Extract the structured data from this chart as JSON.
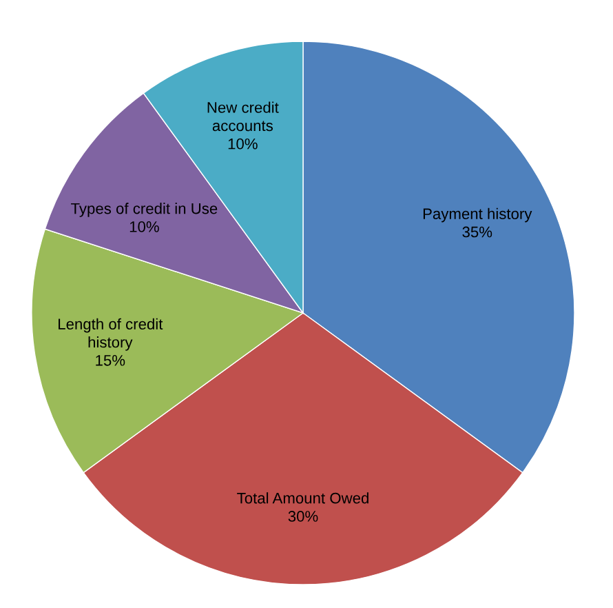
{
  "chart_data": {
    "type": "pie",
    "categories": [
      "Payment history",
      "Total Amount Owed",
      "Length of credit\nhistory",
      "Types of credit in Use",
      "New credit\naccounts"
    ],
    "values": [
      35,
      30,
      15,
      10,
      10
    ],
    "colors": [
      "#4f81bd",
      "#c0504d",
      "#9bbb59",
      "#8064a2",
      "#4bacc6"
    ],
    "value_labels": [
      "35%",
      "30%",
      "15%",
      "10%",
      "10%"
    ]
  }
}
